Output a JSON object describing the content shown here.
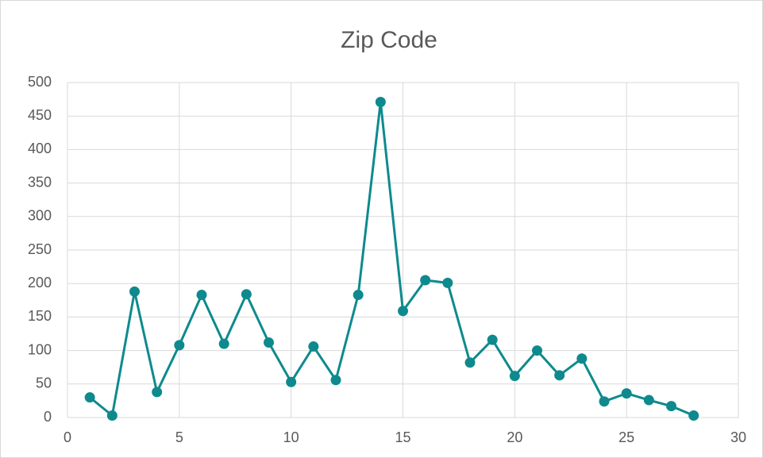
{
  "chart_data": {
    "type": "line",
    "title": "Zip Code",
    "x": [
      1,
      2,
      3,
      4,
      5,
      6,
      7,
      8,
      9,
      10,
      11,
      12,
      13,
      14,
      15,
      16,
      17,
      18,
      19,
      20,
      21,
      22,
      23,
      24,
      25,
      26,
      27,
      28
    ],
    "values": [
      30,
      3,
      188,
      38,
      108,
      183,
      110,
      184,
      112,
      53,
      106,
      56,
      183,
      471,
      159,
      205,
      201,
      82,
      116,
      62,
      100,
      63,
      88,
      24,
      36,
      26,
      17,
      3
    ],
    "color": "#0e8a8e",
    "xlim": [
      0,
      30
    ],
    "xticks": [
      0,
      5,
      10,
      15,
      20,
      25,
      30
    ],
    "ylim": [
      0,
      500
    ],
    "yticks": [
      0,
      50,
      100,
      150,
      200,
      250,
      300,
      350,
      400,
      450,
      500
    ],
    "grid": true
  }
}
